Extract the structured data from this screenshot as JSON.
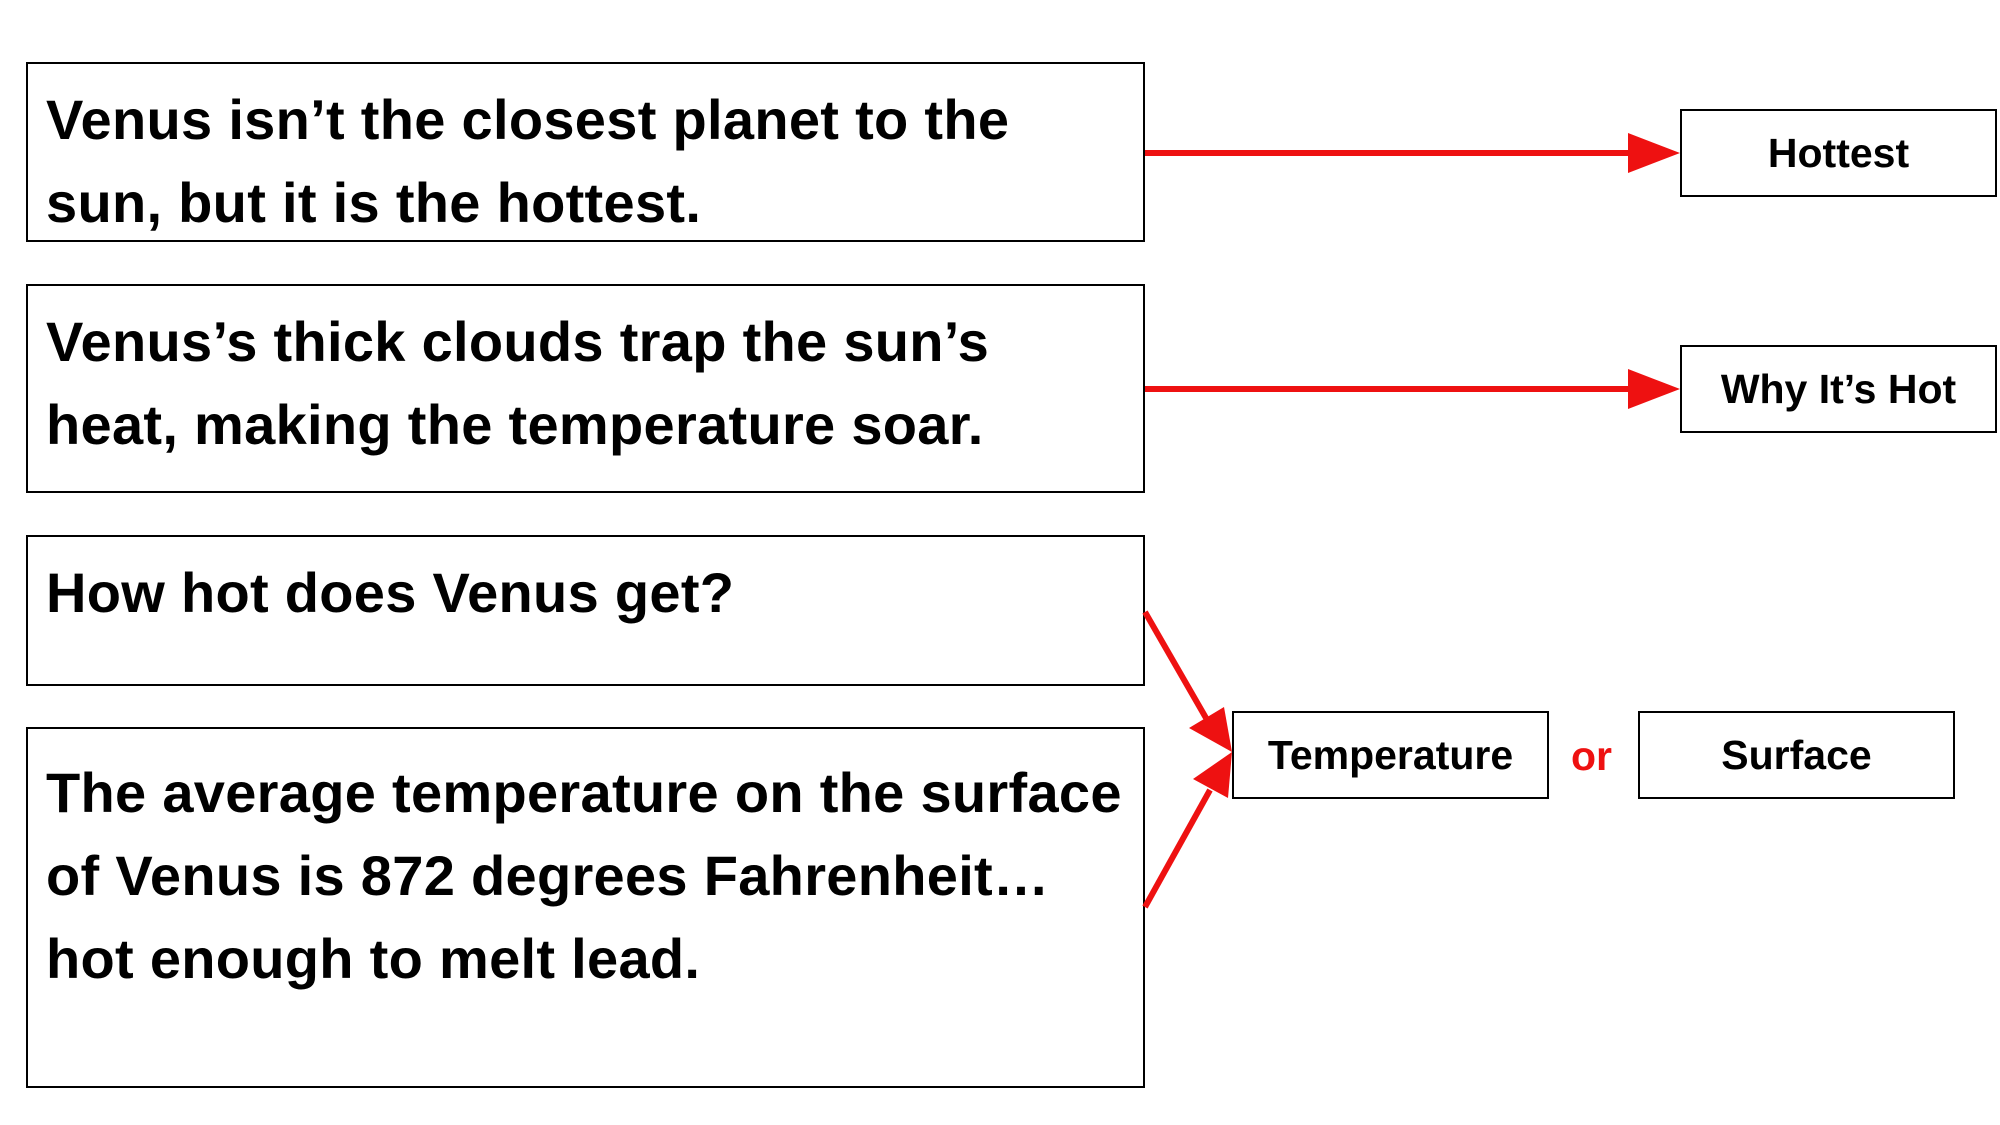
{
  "statements": [
    "Venus isn’t the closest planet to the sun, but it is the hottest.",
    "Venus’s thick clouds trap the sun’s heat, making the temperature soar.",
    "How hot does Venus get?",
    "The average temperature on the surface of Venus is 872 degrees Fahrenheit… hot enough to melt lead."
  ],
  "labels": {
    "hottest": "Hottest",
    "why_hot": "Why It’s Hot",
    "temperature": "Temperature",
    "connector": "or",
    "surface": "Surface"
  },
  "colors": {
    "arrow": "#ee1111",
    "border": "#000000",
    "text": "#000000"
  }
}
